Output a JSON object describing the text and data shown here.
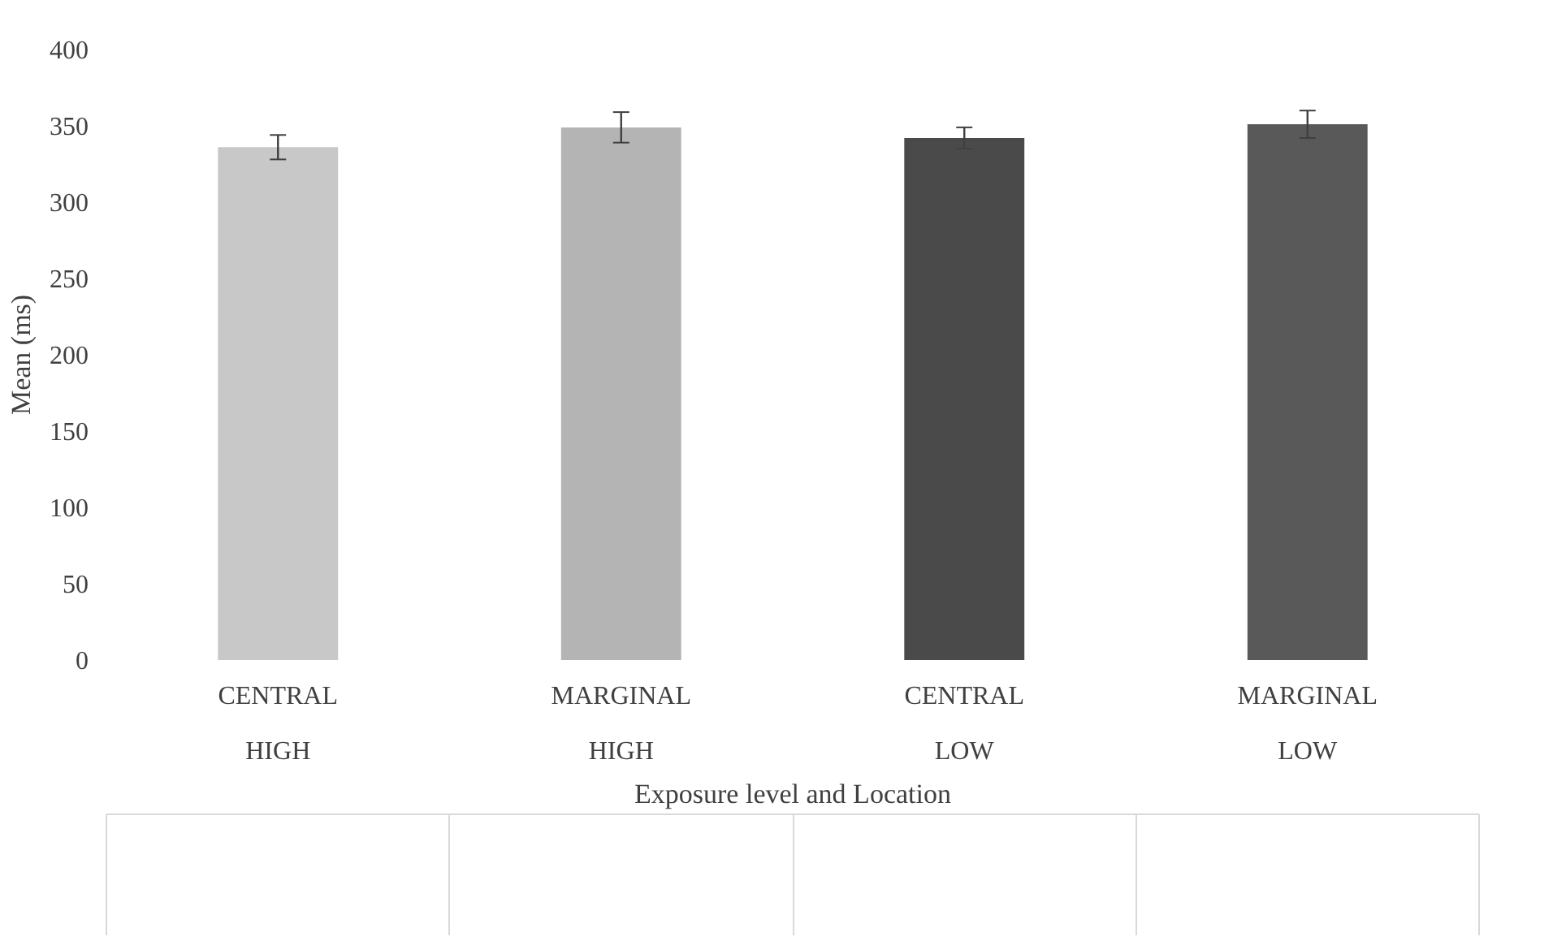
{
  "chart_data": {
    "type": "bar",
    "xlabel": "Exposure level and Location",
    "ylabel": "Mean (ms)",
    "categories": [
      "CENTRAL\nHIGH",
      "MARGINAL\nHIGH",
      "CENTRAL\nLOW",
      "MARGINAL\nLOW"
    ],
    "values": [
      336,
      349,
      342,
      351
    ],
    "colors": [
      "#c8c8c8",
      "#b4b4b4",
      "#4a4a4a",
      "#595959"
    ],
    "errors": [
      8,
      10,
      7,
      9
    ],
    "ylim": [
      0,
      400
    ],
    "yticks": [
      0,
      50,
      100,
      150,
      200,
      250,
      300,
      350,
      400
    ],
    "grid": false
  }
}
